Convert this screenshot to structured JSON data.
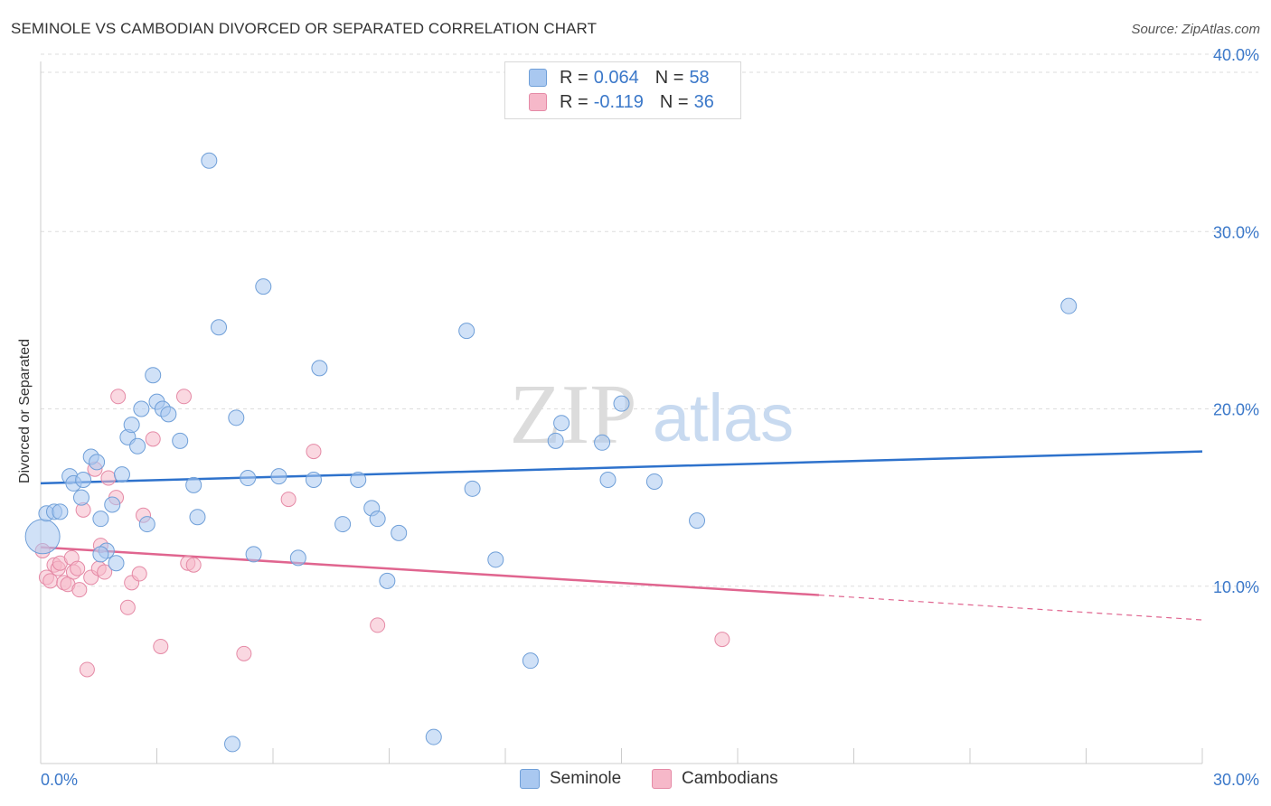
{
  "header": {
    "title": "SEMINOLE VS CAMBODIAN DIVORCED OR SEPARATED CORRELATION CHART",
    "source": "Source: ZipAtlas.com"
  },
  "watermark": {
    "zip": "ZIP",
    "atlas": "atlas"
  },
  "legend": {
    "seminole": {
      "r_label": "R =",
      "r_value": "0.064",
      "n_label": "N =",
      "n_value": "58"
    },
    "cambodians": {
      "r_label": "R =",
      "r_value": "-0.119",
      "n_label": "N =",
      "n_value": "36"
    }
  },
  "bottom_legend": {
    "seminole": "Seminole",
    "cambodians": "Cambodians"
  },
  "colors": {
    "seminole_fill": "#a9c8f0",
    "seminole_stroke": "#6f9fd8",
    "seminole_line": "#2e72cc",
    "cambodians_fill": "#f6b8c9",
    "cambodians_stroke": "#e58aa6",
    "cambodians_line": "#e0658f",
    "tick_text": "#3b78c9",
    "grid": "#dddddd"
  },
  "chart_data": {
    "type": "scatter",
    "title": "SEMINOLE VS CAMBODIAN DIVORCED OR SEPARATED CORRELATION CHART",
    "xlabel": "",
    "ylabel": "Divorced or Separated",
    "xlim": [
      0,
      30
    ],
    "ylim": [
      0,
      40
    ],
    "x_ticks": [
      "0.0%",
      "30.0%"
    ],
    "y_ticks": [
      "10.0%",
      "20.0%",
      "30.0%",
      "40.0%"
    ],
    "y_tick_values": [
      10,
      20,
      30,
      40
    ],
    "grid": "horizontal dashed",
    "legend_position": "top-center",
    "series": [
      {
        "name": "Seminole",
        "points": [
          [
            0.05,
            12.8
          ],
          [
            0.15,
            14.1
          ],
          [
            0.35,
            14.2
          ],
          [
            0.5,
            14.2
          ],
          [
            0.75,
            16.2
          ],
          [
            0.85,
            15.8
          ],
          [
            1.05,
            15.0
          ],
          [
            1.1,
            16.0
          ],
          [
            1.3,
            17.3
          ],
          [
            1.45,
            17.0
          ],
          [
            1.55,
            13.8
          ],
          [
            1.7,
            12.0
          ],
          [
            1.85,
            14.6
          ],
          [
            1.95,
            11.3
          ],
          [
            2.1,
            16.3
          ],
          [
            2.25,
            18.4
          ],
          [
            2.35,
            19.1
          ],
          [
            2.5,
            17.9
          ],
          [
            2.6,
            20.0
          ],
          [
            2.75,
            13.5
          ],
          [
            2.9,
            21.9
          ],
          [
            3.0,
            20.4
          ],
          [
            3.15,
            20.0
          ],
          [
            3.3,
            19.7
          ],
          [
            3.6,
            18.2
          ],
          [
            3.95,
            15.7
          ],
          [
            4.05,
            13.9
          ],
          [
            4.35,
            34.0
          ],
          [
            4.6,
            24.6
          ],
          [
            4.95,
            1.1
          ],
          [
            5.05,
            19.5
          ],
          [
            5.35,
            16.1
          ],
          [
            5.5,
            11.8
          ],
          [
            5.75,
            26.9
          ],
          [
            6.15,
            16.2
          ],
          [
            6.65,
            11.6
          ],
          [
            7.05,
            16.0
          ],
          [
            7.2,
            22.3
          ],
          [
            7.8,
            13.5
          ],
          [
            8.2,
            16.0
          ],
          [
            8.55,
            14.4
          ],
          [
            8.7,
            13.8
          ],
          [
            8.95,
            10.3
          ],
          [
            9.25,
            13.0
          ],
          [
            10.15,
            1.5
          ],
          [
            11.0,
            24.4
          ],
          [
            11.15,
            15.5
          ],
          [
            11.75,
            11.5
          ],
          [
            12.65,
            5.8
          ],
          [
            13.3,
            18.2
          ],
          [
            13.45,
            19.2
          ],
          [
            14.5,
            18.1
          ],
          [
            14.65,
            16.0
          ],
          [
            15.0,
            20.3
          ],
          [
            15.85,
            15.9
          ],
          [
            16.95,
            13.7
          ],
          [
            26.55,
            25.8
          ],
          [
            1.55,
            11.8
          ]
        ]
      },
      {
        "name": "Cambodians",
        "points": [
          [
            0.05,
            12.0
          ],
          [
            0.15,
            10.5
          ],
          [
            0.25,
            10.3
          ],
          [
            0.35,
            11.2
          ],
          [
            0.45,
            11.0
          ],
          [
            0.5,
            11.3
          ],
          [
            0.6,
            10.2
          ],
          [
            0.7,
            10.1
          ],
          [
            0.8,
            11.6
          ],
          [
            0.85,
            10.8
          ],
          [
            0.95,
            11.0
          ],
          [
            1.0,
            9.8
          ],
          [
            1.1,
            14.3
          ],
          [
            1.2,
            5.3
          ],
          [
            1.3,
            10.5
          ],
          [
            1.4,
            16.6
          ],
          [
            1.5,
            11.0
          ],
          [
            1.55,
            12.3
          ],
          [
            1.65,
            10.8
          ],
          [
            1.75,
            16.1
          ],
          [
            1.95,
            15.0
          ],
          [
            2.0,
            20.7
          ],
          [
            2.25,
            8.8
          ],
          [
            2.35,
            10.2
          ],
          [
            2.55,
            10.7
          ],
          [
            2.65,
            14.0
          ],
          [
            2.9,
            18.3
          ],
          [
            3.1,
            6.6
          ],
          [
            3.7,
            20.7
          ],
          [
            3.8,
            11.3
          ],
          [
            3.95,
            11.2
          ],
          [
            5.25,
            6.2
          ],
          [
            6.4,
            14.9
          ],
          [
            7.05,
            17.6
          ],
          [
            8.7,
            7.8
          ],
          [
            17.6,
            7.0
          ]
        ]
      }
    ],
    "trendlines": [
      {
        "name": "Seminole",
        "x": [
          0,
          30
        ],
        "y": [
          15.8,
          17.6
        ]
      },
      {
        "name": "Cambodians",
        "x": [
          0,
          20.1,
          30
        ],
        "y": [
          12.2,
          9.5,
          8.1
        ]
      }
    ]
  }
}
